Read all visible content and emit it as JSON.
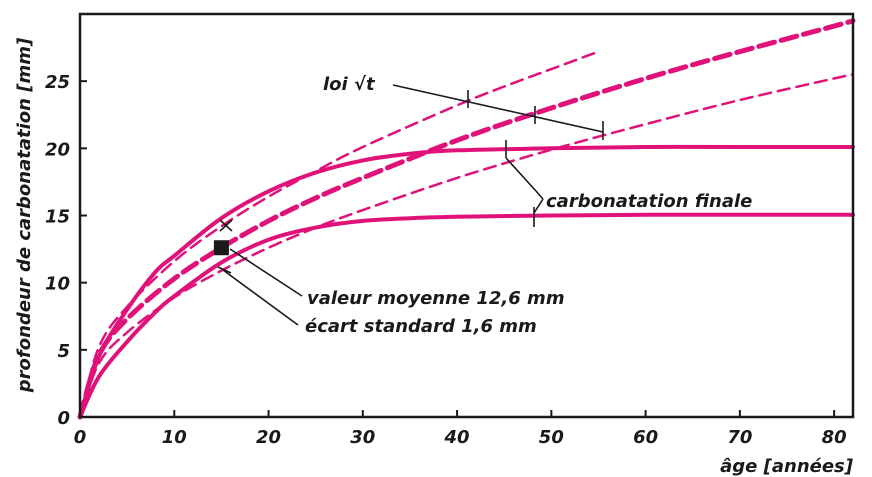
{
  "chart_data": {
    "type": "line",
    "title": "",
    "xlabel": "âge [années]",
    "ylabel": "profondeur de carbonatation [mm]",
    "xlim": [
      0,
      82
    ],
    "ylim": [
      0,
      30
    ],
    "grid": false,
    "x_ticks": [
      "0",
      "10",
      "20",
      "30",
      "40",
      "50",
      "60",
      "70",
      "80"
    ],
    "y_ticks": [
      "0",
      "5",
      "10",
      "15",
      "20",
      "25"
    ],
    "series": [
      {
        "style": "dashed-thick",
        "x": [
          0,
          2,
          5,
          10,
          15,
          20,
          25,
          30,
          40,
          50,
          60,
          70,
          80,
          82
        ],
        "values": [
          0,
          4.6,
          7.3,
          10.3,
          12.6,
          14.6,
          16.3,
          17.8,
          20.6,
          23.0,
          25.2,
          27.2,
          29.1,
          29.5
        ]
      },
      {
        "style": "dashed-thin",
        "x": [
          0,
          2,
          5,
          10,
          15,
          20,
          25,
          30,
          40,
          45,
          50,
          55
        ],
        "values": [
          0,
          5.2,
          8.2,
          11.6,
          14.2,
          16.4,
          18.3,
          20.1,
          23.2,
          24.6,
          25.9,
          27.2
        ]
      },
      {
        "style": "dashed-thin",
        "x": [
          0,
          2,
          5,
          10,
          15,
          20,
          25,
          30,
          40,
          50,
          60,
          70,
          80,
          82
        ],
        "values": [
          0,
          4.0,
          6.3,
          8.9,
          10.9,
          12.6,
          14.1,
          15.4,
          17.8,
          19.9,
          21.8,
          23.6,
          25.2,
          25.5
        ]
      },
      {
        "style": "solid",
        "x": [
          0,
          2,
          5,
          8,
          10,
          15,
          20,
          25,
          30,
          35,
          40,
          50,
          60,
          70,
          82
        ],
        "values": [
          0,
          4.5,
          8.0,
          10.8,
          12.0,
          14.8,
          16.8,
          18.2,
          19.1,
          19.6,
          19.85,
          20.0,
          20.1,
          20.1,
          20.1
        ]
      },
      {
        "style": "solid",
        "x": [
          0,
          2,
          5,
          8,
          10,
          15,
          20,
          25,
          30,
          35,
          40,
          50,
          60,
          70,
          82
        ],
        "values": [
          0,
          3.0,
          5.6,
          7.8,
          9.0,
          11.5,
          13.2,
          14.1,
          14.6,
          14.8,
          14.9,
          15.0,
          15.05,
          15.05,
          15.05
        ]
      }
    ],
    "mean_point": {
      "x": 15,
      "y": 12.6
    },
    "colors": {
      "curve": "#e0127a",
      "axis": "#1a1a1a",
      "marker": "#1a1a1a"
    },
    "annotations": {
      "loi": "loi √t",
      "finale": "carbonatation finale",
      "moyenne": "valeur moyenne 12,6 mm",
      "ecart": "écart standard 1,6 mm"
    }
  }
}
